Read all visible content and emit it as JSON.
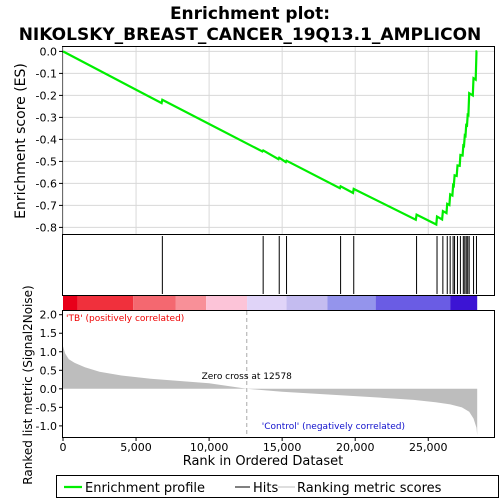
{
  "chart_data": {
    "type": "line",
    "title_line1": "Enrichment plot:",
    "title_line2": "NIKOLSKY_BREAST_CANCER_19Q13.1_AMPLICON",
    "ylabel_top": "Enrichment score (ES)",
    "ylabel_bottom": "Ranked list metric (Signal2Noise)",
    "xlabel": "Rank in Ordered Dataset",
    "xlim": [
      0,
      29500
    ],
    "es_ylim": [
      -0.83,
      0.02
    ],
    "metric_ylim": [
      -1.3,
      2.1
    ],
    "x_ticks": [
      0,
      5000,
      10000,
      15000,
      20000,
      25000
    ],
    "x_tick_labels": [
      "0",
      "5,000",
      "10,000",
      "15,000",
      "20,000",
      "25,000"
    ],
    "es_ticks": [
      0.0,
      -0.1,
      -0.2,
      -0.3,
      -0.4,
      -0.5,
      -0.6,
      -0.7,
      -0.8
    ],
    "es_tick_labels": [
      "0.0",
      "-0.1",
      "-0.2",
      "-0.3",
      "-0.4",
      "-0.5",
      "-0.6",
      "-0.7",
      "-0.8"
    ],
    "metric_ticks": [
      2.0,
      1.5,
      1.0,
      0.5,
      0.0,
      -0.5,
      -1.0
    ],
    "metric_tick_labels": [
      "2.0",
      "1.5",
      "1.0",
      "0.5",
      "0.0",
      "-0.5",
      "-1.0"
    ],
    "hits": [
      6800,
      13700,
      14800,
      15300,
      19000,
      19900,
      24200,
      25600,
      26000,
      26300,
      26500,
      26700,
      26800,
      27000,
      27200,
      27400,
      27500,
      27600,
      27700,
      27800,
      28100,
      28300
    ],
    "enrichment_profile": [
      [
        0,
        0.0
      ],
      [
        6750,
        -0.235
      ],
      [
        6800,
        -0.22
      ],
      [
        13650,
        -0.455
      ],
      [
        13700,
        -0.45
      ],
      [
        14750,
        -0.49
      ],
      [
        14800,
        -0.483
      ],
      [
        15250,
        -0.503
      ],
      [
        15300,
        -0.497
      ],
      [
        18950,
        -0.622
      ],
      [
        19000,
        -0.613
      ],
      [
        19850,
        -0.643
      ],
      [
        19900,
        -0.625
      ],
      [
        24150,
        -0.765
      ],
      [
        24200,
        -0.742
      ],
      [
        25550,
        -0.787
      ],
      [
        25600,
        -0.751
      ],
      [
        25950,
        -0.764
      ],
      [
        26000,
        -0.726
      ],
      [
        26250,
        -0.735
      ],
      [
        26300,
        -0.693
      ],
      [
        26450,
        -0.698
      ],
      [
        26500,
        -0.65
      ],
      [
        26650,
        -0.655
      ],
      [
        26700,
        -0.608
      ],
      [
        26750,
        -0.611
      ],
      [
        26800,
        -0.563
      ],
      [
        26950,
        -0.566
      ],
      [
        27000,
        -0.518
      ],
      [
        27150,
        -0.52
      ],
      [
        27200,
        -0.471
      ],
      [
        27350,
        -0.473
      ],
      [
        27400,
        -0.428
      ],
      [
        27450,
        -0.43
      ],
      [
        27500,
        -0.382
      ],
      [
        27550,
        -0.384
      ],
      [
        27600,
        -0.335
      ],
      [
        27650,
        -0.337
      ],
      [
        27700,
        -0.288
      ],
      [
        27750,
        -0.29
      ],
      [
        27800,
        -0.19
      ],
      [
        28050,
        -0.2
      ],
      [
        28100,
        -0.122
      ],
      [
        28250,
        -0.128
      ],
      [
        28300,
        0.0
      ],
      [
        28350,
        0.0
      ]
    ],
    "metric_points": [
      [
        0,
        1.15
      ],
      [
        150,
        0.95
      ],
      [
        400,
        0.8
      ],
      [
        800,
        0.7
      ],
      [
        1500,
        0.58
      ],
      [
        2500,
        0.46
      ],
      [
        4000,
        0.36
      ],
      [
        6000,
        0.27
      ],
      [
        8000,
        0.21
      ],
      [
        10000,
        0.15
      ],
      [
        12578,
        0.0
      ],
      [
        15000,
        -0.08
      ],
      [
        18000,
        -0.15
      ],
      [
        21000,
        -0.22
      ],
      [
        24000,
        -0.3
      ],
      [
        25500,
        -0.36
      ],
      [
        26500,
        -0.42
      ],
      [
        27300,
        -0.5
      ],
      [
        27800,
        -0.62
      ],
      [
        28100,
        -0.8
      ],
      [
        28300,
        -1.05
      ],
      [
        28350,
        -1.25
      ]
    ],
    "zero_cross_rank": 12578,
    "zero_cross_label": "Zero cross at 12578",
    "pos_label": "'TB' (positively correlated)",
    "neg_label": "'Control' (negatively correlated)",
    "heat_colors": [
      "#e8001a",
      "#f0303c",
      "#f46870",
      "#f89098",
      "#fcc4d8",
      "#e0d4f8",
      "#c4bcf0",
      "#9494ec",
      "#6a5ce4",
      "#3c14d4"
    ],
    "heat_breaks": [
      0,
      1000,
      4800,
      7700,
      9800,
      12600,
      15300,
      18100,
      21400,
      26500,
      28350
    ],
    "legend_items": [
      "Enrichment profile",
      "Hits",
      "Ranking metric scores"
    ],
    "colors": {
      "es_line": "#00ee00",
      "hit": "#000000",
      "metric_fill": "#bdbdbd",
      "pos_text": "#ee0000",
      "neg_text": "#1010cc",
      "zero_line": "#aaaaaa"
    }
  }
}
